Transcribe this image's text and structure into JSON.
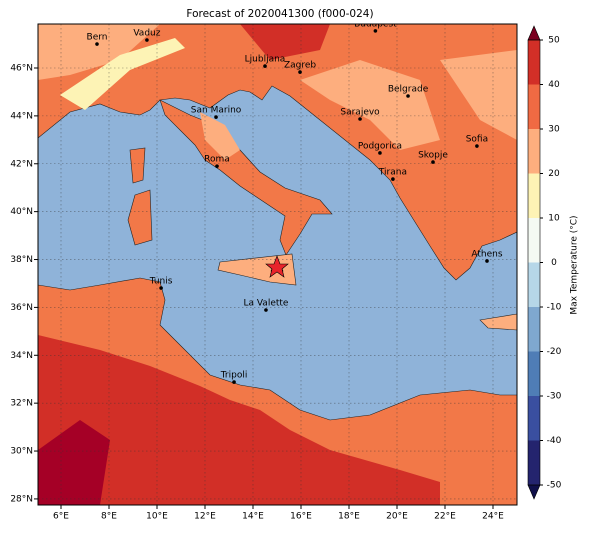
{
  "map": {
    "title": "Forecast of 2020041300 (f000-024)",
    "lon_ticks": [
      {
        "value": 6,
        "label": "6°E"
      },
      {
        "value": 8,
        "label": "8°E"
      },
      {
        "value": 10,
        "label": "10°E"
      },
      {
        "value": 12,
        "label": "12°E"
      },
      {
        "value": 14,
        "label": "14°E"
      },
      {
        "value": 16,
        "label": "16°E"
      },
      {
        "value": 18,
        "label": "18°E"
      },
      {
        "value": 20,
        "label": "20°E"
      },
      {
        "value": 22,
        "label": "22°E"
      },
      {
        "value": 24,
        "label": "24°E"
      }
    ],
    "lat_ticks": [
      {
        "value": 28,
        "label": "28°N"
      },
      {
        "value": 30,
        "label": "30°N"
      },
      {
        "value": 32,
        "label": "32°N"
      },
      {
        "value": 34,
        "label": "34°N"
      },
      {
        "value": 36,
        "label": "36°N"
      },
      {
        "value": 38,
        "label": "38°N"
      },
      {
        "value": 40,
        "label": "40°N"
      },
      {
        "value": 42,
        "label": "42°N"
      },
      {
        "value": 44,
        "label": "44°N"
      },
      {
        "value": 46,
        "label": "46°N"
      }
    ],
    "cities": [
      {
        "name": "Bern",
        "lon": 7.5,
        "lat": 47.0
      },
      {
        "name": "Vaduz",
        "lon": 9.58,
        "lat": 47.17
      },
      {
        "name": "Budapest",
        "lon": 19.1,
        "lat": 47.55
      },
      {
        "name": "Ljubljana",
        "lon": 14.5,
        "lat": 46.08
      },
      {
        "name": "Zagreb",
        "lon": 15.96,
        "lat": 45.83
      },
      {
        "name": "Belgrade",
        "lon": 20.46,
        "lat": 44.83
      },
      {
        "name": "San Marino",
        "lon": 12.46,
        "lat": 43.95
      },
      {
        "name": "Sarajevo",
        "lon": 18.46,
        "lat": 43.87
      },
      {
        "name": "Sofia",
        "lon": 23.33,
        "lat": 42.74
      },
      {
        "name": "Podgorica",
        "lon": 19.29,
        "lat": 42.45
      },
      {
        "name": "Skopje",
        "lon": 21.5,
        "lat": 42.07
      },
      {
        "name": "Roma",
        "lon": 12.5,
        "lat": 41.9
      },
      {
        "name": "Tirana",
        "lon": 19.83,
        "lat": 41.36
      },
      {
        "name": "Athens",
        "lon": 23.75,
        "lat": 37.94
      },
      {
        "name": "Tunis",
        "lon": 10.17,
        "lat": 36.81
      },
      {
        "name": "La Valette",
        "lon": 14.54,
        "lat": 35.89
      },
      {
        "name": "Tripoli",
        "lon": 13.21,
        "lat": 32.88
      }
    ],
    "colorbar": {
      "label": "Max Temperature (°C)",
      "ticks": [
        -50,
        -40,
        -30,
        -20,
        -10,
        0,
        10,
        20,
        30,
        40,
        50
      ],
      "colors": [
        "#24246e",
        "#3a4fa0",
        "#4f7db6",
        "#7fa8cf",
        "#b6d7e8",
        "#f4faf3",
        "#fdf3b5",
        "#fdae7e",
        "#f06a43",
        "#d22f27",
        "#a50026"
      ],
      "under_color": "#10104a",
      "over_color": "#7a0020"
    }
  }
}
